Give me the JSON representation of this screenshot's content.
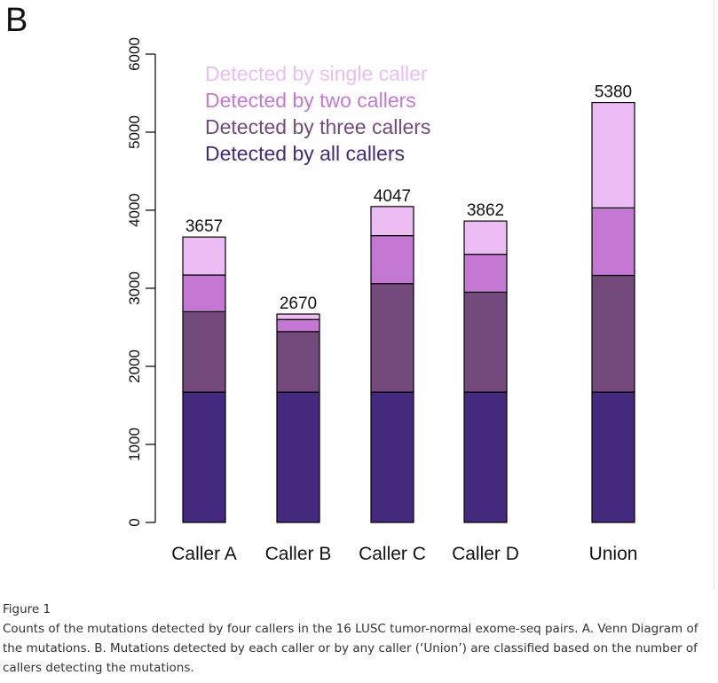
{
  "panel_label": "B",
  "caption": {
    "label": "Figure 1",
    "text": "Counts of the mutations detected by four callers in the 16 LUSC tumor-normal exome-seq pairs. A. Venn Diagram of the mutations. B. Mutations detected by each caller or by any caller (‘Union’) are classified based on the number of callers detecting the mutations."
  },
  "chart_data": {
    "type": "bar",
    "stacked": true,
    "categories": [
      "Caller A",
      "Caller B",
      "Caller C",
      "Caller D",
      "Union"
    ],
    "series": [
      {
        "name": "Detected by all callers",
        "color": "#432a7f",
        "values": [
          1670,
          1670,
          1670,
          1670,
          1670
        ]
      },
      {
        "name": "Detected by three callers",
        "color": "#744a7c",
        "values": [
          1030,
          775,
          1390,
          1280,
          1495
        ]
      },
      {
        "name": "Detected by two callers",
        "color": "#c478d4",
        "values": [
          470,
          155,
          615,
          485,
          865
        ]
      },
      {
        "name": "Detected by single caller",
        "color": "#ecbdf5",
        "values": [
          487,
          70,
          372,
          427,
          1350
        ]
      }
    ],
    "totals": [
      3657,
      2670,
      4047,
      3862,
      5380
    ],
    "ylim": [
      0,
      6000
    ],
    "yticks": [
      0,
      1000,
      2000,
      3000,
      4000,
      5000,
      6000
    ],
    "legend_order": [
      "Detected by single caller",
      "Detected by two callers",
      "Detected by three callers",
      "Detected by all callers"
    ],
    "legend_placement": "top-left",
    "grid": false
  }
}
